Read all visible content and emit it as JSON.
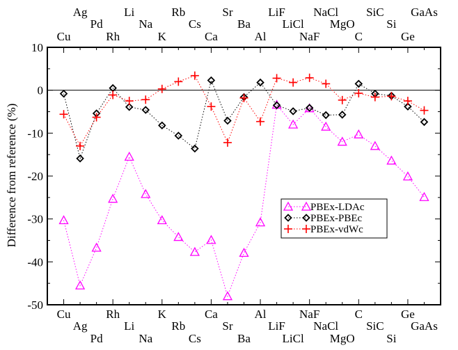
{
  "chart_data": {
    "type": "line",
    "categories": [
      "Cu",
      "Ag",
      "Pd",
      "Rh",
      "Li",
      "Na",
      "K",
      "Rb",
      "Cs",
      "Ca",
      "Sr",
      "Ba",
      "Al",
      "LiF",
      "LiCl",
      "NaF",
      "NaCl",
      "MgO",
      "C",
      "SiC",
      "Si",
      "Ge",
      "GaAs"
    ],
    "ylabel": "Difference from reference (%)",
    "ylim": [
      -50,
      10
    ],
    "yticks": [
      10,
      0,
      -10,
      -20,
      -30,
      -40,
      -50
    ],
    "zero_line": true,
    "grid": false,
    "legend_position": "center-right",
    "series": [
      {
        "name": "PBEx-LDAc",
        "color": "#ff00ff",
        "marker": "triangle",
        "linestyle": "dotted",
        "values": [
          -30.3,
          -45.5,
          -36.7,
          -25.3,
          -15.5,
          -24.2,
          -30.3,
          -34.2,
          -37.7,
          -34.9,
          -48.0,
          -37.9,
          -30.8,
          -3.4,
          -8.0,
          -4.2,
          -8.5,
          -12.0,
          -10.3,
          -13.0,
          -16.4,
          -20.1,
          -24.9
        ]
      },
      {
        "name": "PBEx-PBEc",
        "color": "#000000",
        "marker": "diamond",
        "linestyle": "dotted",
        "values": [
          -0.8,
          -15.9,
          -5.4,
          0.5,
          -3.9,
          -4.6,
          -8.2,
          -10.6,
          -13.6,
          2.3,
          -7.1,
          -1.6,
          1.8,
          -3.5,
          -4.9,
          -4.1,
          -5.8,
          -5.7,
          1.5,
          -0.8,
          -1.3,
          -3.8,
          -7.4
        ]
      },
      {
        "name": "PBEx-vdWc",
        "color": "#ff0000",
        "marker": "plus",
        "linestyle": "dotted",
        "values": [
          -5.6,
          -13.0,
          -6.3,
          -1.1,
          -2.5,
          -2.2,
          0.3,
          2.0,
          3.4,
          -3.8,
          -12.2,
          -1.8,
          -7.3,
          2.8,
          1.8,
          2.9,
          1.5,
          -2.3,
          -0.7,
          -1.6,
          -1.4,
          -2.5,
          -4.7
        ]
      }
    ]
  }
}
